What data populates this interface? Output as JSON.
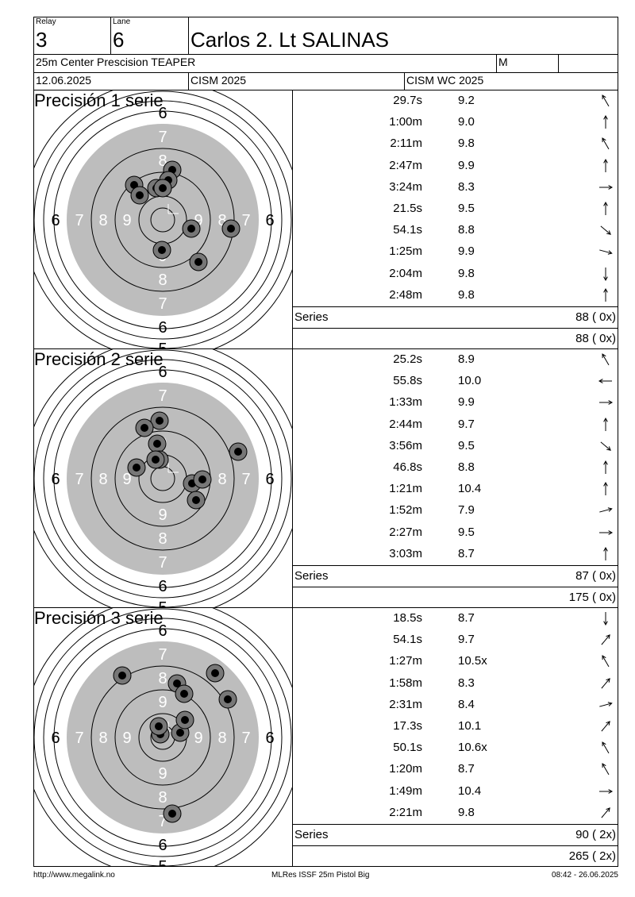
{
  "header": {
    "relay_label": "Relay",
    "relay_value": "3",
    "lane_label": "Lane",
    "lane_value": "6",
    "shooter_name": "Carlos 2. Lt SALINAS",
    "event_name": "25m Center Prescision TEAPER",
    "gender": "M",
    "extra": "",
    "date": "12.06.2025",
    "competition": "CISM 2025",
    "match": "CISM WC 2025"
  },
  "sections": [
    {
      "title": "Precisión 1 serie",
      "shots": [
        {
          "time": "29.7s",
          "score": "9.2",
          "dir": "up-left"
        },
        {
          "time": "1:00m",
          "score": "9.0",
          "dir": "up"
        },
        {
          "time": "2:11m",
          "score": "9.8",
          "dir": "up-left"
        },
        {
          "time": "2:47m",
          "score": "9.9",
          "dir": "up"
        },
        {
          "time": "3:24m",
          "score": "8.3",
          "dir": "right"
        },
        {
          "time": "21.5s",
          "score": "9.5",
          "dir": "up"
        },
        {
          "time": "54.1s",
          "score": "8.8",
          "dir": "down-right"
        },
        {
          "time": "1:25m",
          "score": "9.9",
          "dir": "right-down"
        },
        {
          "time": "2:04m",
          "score": "9.8",
          "dir": "down"
        },
        {
          "time": "2:48m",
          "score": "9.8",
          "dir": "up"
        }
      ],
      "series_label": "Series",
      "series_value": "88 ( 0x)",
      "total_value": "88 ( 0x)"
    },
    {
      "title": "Precisión 2 serie",
      "shots": [
        {
          "time": "25.2s",
          "score": "8.9",
          "dir": "up-left"
        },
        {
          "time": "55.8s",
          "score": "10.0",
          "dir": "left"
        },
        {
          "time": "1:33m",
          "score": "9.9",
          "dir": "right"
        },
        {
          "time": "2:44m",
          "score": "9.7",
          "dir": "up"
        },
        {
          "time": "3:56m",
          "score": "9.5",
          "dir": "down-right"
        },
        {
          "time": "46.8s",
          "score": "8.8",
          "dir": "up"
        },
        {
          "time": "1:21m",
          "score": "10.4",
          "dir": "up"
        },
        {
          "time": "1:52m",
          "score": "7.9",
          "dir": "right-up"
        },
        {
          "time": "2:27m",
          "score": "9.5",
          "dir": "right"
        },
        {
          "time": "3:03m",
          "score": "8.7",
          "dir": "up"
        }
      ],
      "series_label": "Series",
      "series_value": "87 ( 0x)",
      "total_value": "175 ( 0x)"
    },
    {
      "title": "Precisión 3 serie",
      "shots": [
        {
          "time": "18.5s",
          "score": "8.7",
          "dir": "down"
        },
        {
          "time": "54.1s",
          "score": "9.7",
          "dir": "up-right"
        },
        {
          "time": "1:27m",
          "score": "10.5x",
          "dir": "up-left"
        },
        {
          "time": "1:58m",
          "score": "8.3",
          "dir": "up-right"
        },
        {
          "time": "2:31m",
          "score": "8.4",
          "dir": "right-up"
        },
        {
          "time": "17.3s",
          "score": "10.1",
          "dir": "up-right"
        },
        {
          "time": "50.1s",
          "score": "10.6x",
          "dir": "up-left"
        },
        {
          "time": "1:20m",
          "score": "8.7",
          "dir": "up-left"
        },
        {
          "time": "1:49m",
          "score": "10.4",
          "dir": "right"
        },
        {
          "time": "2:21m",
          "score": "9.8",
          "dir": "up-right"
        }
      ],
      "series_label": "Series",
      "series_value": "90 ( 2x)",
      "total_value": "265 ( 2x)"
    }
  ],
  "footer": {
    "left": "http://www.megalink.no",
    "center": "MLRes ISSF 25m Pistol Big",
    "right": "08:42 - 26.06.2025"
  }
}
